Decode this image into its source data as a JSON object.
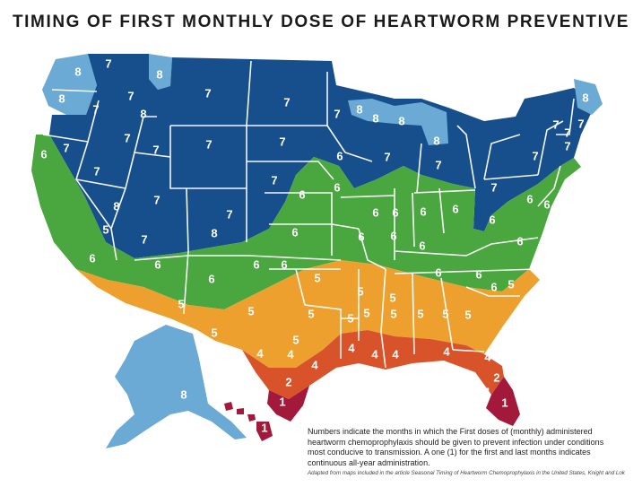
{
  "title": "TIMING OF FIRST MONTHLY DOSE OF HEARTWORM PREVENTIVE",
  "colors": {
    "month_8": "#6aaad4",
    "month_7": "#174f8c",
    "month_6": "#4aa63f",
    "month_5": "#eda02d",
    "month_4": "#d9532a",
    "month_2": "#a3193b",
    "month_1": "#a3193b",
    "state_border": "#ffffff"
  },
  "labels": [
    {
      "id": "wa",
      "text": "8"
    },
    {
      "id": "wa2",
      "text": "7"
    },
    {
      "id": "or",
      "text": "8"
    },
    {
      "id": "or2",
      "text": "7"
    },
    {
      "id": "id",
      "text": "7"
    },
    {
      "id": "mt",
      "text": "8"
    },
    {
      "id": "mt2",
      "text": "7"
    },
    {
      "id": "mt3",
      "text": "8"
    },
    {
      "id": "mt4",
      "text": "7"
    },
    {
      "id": "wy",
      "text": "7"
    },
    {
      "id": "wy2",
      "text": "7"
    },
    {
      "id": "nd",
      "text": "7"
    },
    {
      "id": "sd",
      "text": "7"
    },
    {
      "id": "mn",
      "text": "7"
    },
    {
      "id": "mi_up",
      "text": "8"
    },
    {
      "id": "mi_up2",
      "text": "8"
    },
    {
      "id": "wi",
      "text": "8"
    },
    {
      "id": "mi_up3",
      "text": "8"
    },
    {
      "id": "me",
      "text": "8"
    },
    {
      "id": "vt",
      "text": "7"
    },
    {
      "id": "nh",
      "text": "7"
    },
    {
      "id": "ma",
      "text": "7"
    },
    {
      "id": "ny",
      "text": "7"
    },
    {
      "id": "ct",
      "text": "7"
    },
    {
      "id": "ca_n",
      "text": "6"
    },
    {
      "id": "nv_n",
      "text": "7"
    },
    {
      "id": "nv",
      "text": "7"
    },
    {
      "id": "nv2",
      "text": "8"
    },
    {
      "id": "ut",
      "text": "7"
    },
    {
      "id": "co",
      "text": "7"
    },
    {
      "id": "co2",
      "text": "8"
    },
    {
      "id": "ne",
      "text": "7"
    },
    {
      "id": "wi2",
      "text": "7"
    },
    {
      "id": "mi",
      "text": "7"
    },
    {
      "id": "pa",
      "text": "7"
    },
    {
      "id": "pa2",
      "text": "6"
    },
    {
      "id": "nj",
      "text": "6"
    },
    {
      "id": "ca",
      "text": "7"
    },
    {
      "id": "ca2",
      "text": "5"
    },
    {
      "id": "ca3",
      "text": "6"
    },
    {
      "id": "ca4",
      "text": "5"
    },
    {
      "id": "az_n",
      "text": "7"
    },
    {
      "id": "ne2",
      "text": "6"
    },
    {
      "id": "ia",
      "text": "6"
    },
    {
      "id": "il_n",
      "text": "6"
    },
    {
      "id": "ia2",
      "text": "6"
    },
    {
      "id": "in",
      "text": "6"
    },
    {
      "id": "oh",
      "text": "6"
    },
    {
      "id": "oh2",
      "text": "6"
    },
    {
      "id": "ks",
      "text": "6"
    },
    {
      "id": "mo",
      "text": "6"
    },
    {
      "id": "il",
      "text": "6"
    },
    {
      "id": "wv",
      "text": "6"
    },
    {
      "id": "va",
      "text": "6"
    },
    {
      "id": "az",
      "text": "6"
    },
    {
      "id": "nm",
      "text": "6"
    },
    {
      "id": "ok_n",
      "text": "6"
    },
    {
      "id": "ok_n2",
      "text": "6"
    },
    {
      "id": "ky",
      "text": "6"
    },
    {
      "id": "tn",
      "text": "6"
    },
    {
      "id": "nc",
      "text": "6"
    },
    {
      "id": "nc2",
      "text": "6"
    },
    {
      "id": "nc3",
      "text": "5"
    },
    {
      "id": "az2",
      "text": "5"
    },
    {
      "id": "ok",
      "text": "5"
    },
    {
      "id": "ar",
      "text": "5"
    },
    {
      "id": "tn2",
      "text": "5"
    },
    {
      "id": "ms_n",
      "text": "5"
    },
    {
      "id": "al_n",
      "text": "5"
    },
    {
      "id": "sc",
      "text": "5"
    },
    {
      "id": "tx_w",
      "text": "5"
    },
    {
      "id": "tx",
      "text": "5"
    },
    {
      "id": "ar2",
      "text": "5"
    },
    {
      "id": "ms",
      "text": "5"
    },
    {
      "id": "al",
      "text": "5"
    },
    {
      "id": "ga",
      "text": "5"
    },
    {
      "id": "tx2",
      "text": "5"
    },
    {
      "id": "la",
      "text": "4"
    },
    {
      "id": "ms2",
      "text": "4"
    },
    {
      "id": "al2",
      "text": "4"
    },
    {
      "id": "ga2",
      "text": "4"
    },
    {
      "id": "tx3",
      "text": "4"
    },
    {
      "id": "tx4",
      "text": "4"
    },
    {
      "id": "la2",
      "text": "4"
    },
    {
      "id": "fl",
      "text": "4"
    },
    {
      "id": "tx5",
      "text": "2"
    },
    {
      "id": "tx6",
      "text": "1"
    },
    {
      "id": "fl2",
      "text": "2"
    },
    {
      "id": "fl3",
      "text": "1"
    },
    {
      "id": "fl4",
      "text": "1"
    },
    {
      "id": "ak",
      "text": "8"
    },
    {
      "id": "hi",
      "text": "1"
    }
  ],
  "note": "Numbers indicate the months in which the First doses of (monthly) administered heartworm chemoprophylaxis should be given to prevent infection under conditions most conducive to transmission. A one (1) for the first and last months indicates continuous all-year administration.",
  "source": "Adapted from maps included in the article Seasonal Timing of Heartworm Chemoprophylaxis in the United States, Knight and Lok"
}
